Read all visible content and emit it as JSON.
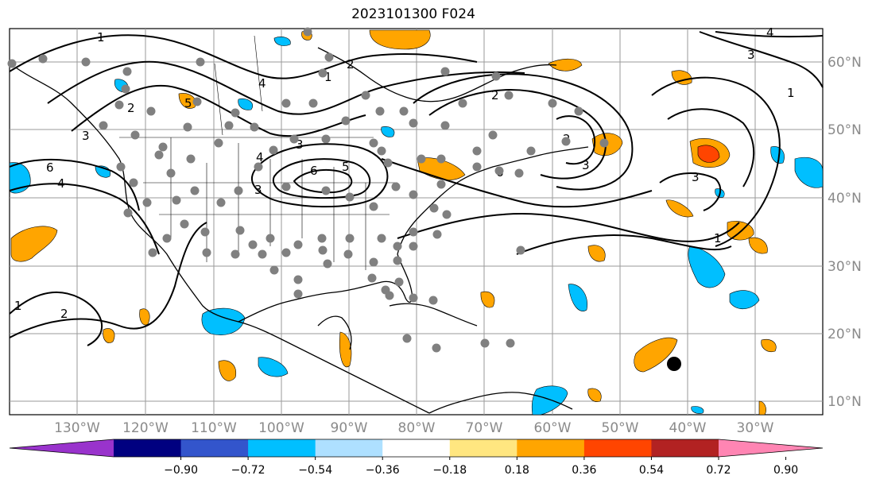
{
  "title": "2023101300 F024",
  "longitude_labels": [
    "130°W",
    "120°W",
    "110°W",
    "100°W",
    "90°W",
    "80°W",
    "70°W",
    "60°W",
    "50°W",
    "40°W",
    "30°W"
  ],
  "latitude_labels": [
    "60°N",
    "50°N",
    "40°N",
    "30°N",
    "20°N",
    "10°N"
  ],
  "colorbar": {
    "ticks": [
      "−0.90",
      "−0.72",
      "−0.54",
      "−0.36",
      "−0.18",
      "0.18",
      "0.36",
      "0.54",
      "0.72",
      "0.90"
    ],
    "colors": [
      "#9933cc",
      "#000080",
      "#3355cc",
      "#00bfff",
      "#aee0ff",
      "#ffffff",
      "#ffe680",
      "#ffa500",
      "#ff4500",
      "#b22222",
      "#ff85b3"
    ]
  },
  "contour_labels": [
    "1",
    "2",
    "3",
    "4",
    "5",
    "6",
    "1",
    "2",
    "3",
    "4",
    "6",
    "5",
    "4",
    "3",
    "2",
    "1",
    "4",
    "3",
    "1",
    "3",
    "2",
    "1",
    "2",
    "3",
    "6"
  ],
  "fill_colors": {
    "orange": "#ffa500",
    "red": "#ff4500",
    "light_orange": "#ffcc66",
    "blue": "#00bfff"
  },
  "marker_colors": {
    "station": "#808080",
    "storm": "#000000"
  }
}
